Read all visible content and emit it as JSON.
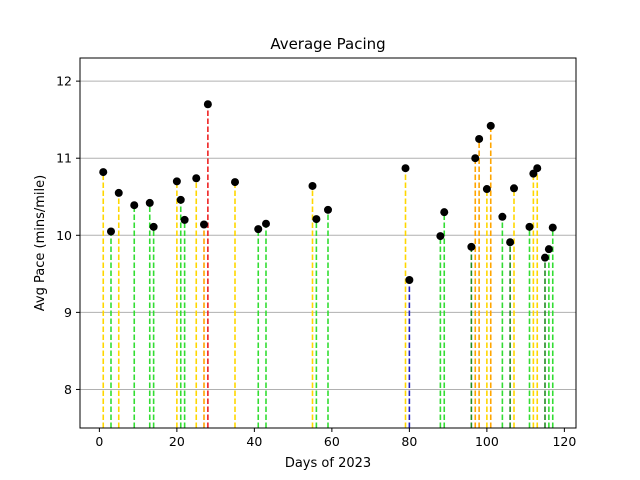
{
  "chart_data": {
    "type": "scatter",
    "title": "Average Pacing",
    "xlabel": "Days of 2023",
    "ylabel": "Avg Pace (mins/mile)",
    "xlim": [
      -5,
      123
    ],
    "ylim": [
      7.5,
      12.3
    ],
    "x_ticks": [
      0,
      20,
      40,
      60,
      80,
      100,
      120
    ],
    "y_ticks": [
      8,
      9,
      10,
      11,
      12
    ],
    "grid": "y",
    "marker_color": "#000000",
    "stem_style": "dashed",
    "points": [
      {
        "x": 1,
        "y": 10.82,
        "color": "#ffd700"
      },
      {
        "x": 3,
        "y": 10.05,
        "color": "#33dd33"
      },
      {
        "x": 5,
        "y": 10.55,
        "color": "#ffd700"
      },
      {
        "x": 9,
        "y": 10.39,
        "color": "#33dd33"
      },
      {
        "x": 13,
        "y": 10.42,
        "color": "#33dd33"
      },
      {
        "x": 14,
        "y": 10.11,
        "color": "#33dd33"
      },
      {
        "x": 20,
        "y": 10.7,
        "color": "#ffd700"
      },
      {
        "x": 21,
        "y": 10.46,
        "color": "#33dd33"
      },
      {
        "x": 22,
        "y": 10.2,
        "color": "#33dd33"
      },
      {
        "x": 25,
        "y": 10.74,
        "color": "#ffd700"
      },
      {
        "x": 27,
        "y": 10.14,
        "color": "#ffa500"
      },
      {
        "x": 28,
        "y": 11.7,
        "color": "#ee2222"
      },
      {
        "x": 35,
        "y": 10.69,
        "color": "#ffd700"
      },
      {
        "x": 41,
        "y": 10.08,
        "color": "#33dd33"
      },
      {
        "x": 43,
        "y": 10.15,
        "color": "#33dd33"
      },
      {
        "x": 55,
        "y": 10.64,
        "color": "#ffd700"
      },
      {
        "x": 56,
        "y": 10.21,
        "color": "#33dd33"
      },
      {
        "x": 59,
        "y": 10.33,
        "color": "#33dd33"
      },
      {
        "x": 79,
        "y": 10.87,
        "color": "#ffd700"
      },
      {
        "x": 80,
        "y": 9.42,
        "color": "#2222bb"
      },
      {
        "x": 88,
        "y": 9.99,
        "color": "#33dd33"
      },
      {
        "x": 89,
        "y": 10.3,
        "color": "#33dd33"
      },
      {
        "x": 96,
        "y": 9.85,
        "color": "#228b22"
      },
      {
        "x": 97,
        "y": 11.0,
        "color": "#ffa500"
      },
      {
        "x": 98,
        "y": 11.25,
        "color": "#ffa500"
      },
      {
        "x": 100,
        "y": 10.6,
        "color": "#ffd700"
      },
      {
        "x": 101,
        "y": 11.42,
        "color": "#ffa500"
      },
      {
        "x": 104,
        "y": 10.24,
        "color": "#33dd33"
      },
      {
        "x": 106,
        "y": 9.91,
        "color": "#228b22"
      },
      {
        "x": 107,
        "y": 10.61,
        "color": "#ffd700"
      },
      {
        "x": 111,
        "y": 10.11,
        "color": "#33dd33"
      },
      {
        "x": 112,
        "y": 10.8,
        "color": "#ffd700"
      },
      {
        "x": 113,
        "y": 10.87,
        "color": "#ffd700"
      },
      {
        "x": 115,
        "y": 9.71,
        "color": "#228b22"
      },
      {
        "x": 116,
        "y": 9.82,
        "color": "#33dd33"
      },
      {
        "x": 117,
        "y": 10.1,
        "color": "#33dd33"
      }
    ]
  }
}
